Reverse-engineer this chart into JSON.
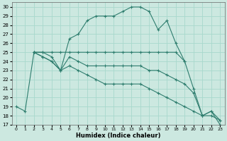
{
  "title": "",
  "xlabel": "Humidex (Indice chaleur)",
  "bg_color": "#cce8e0",
  "line_color": "#2e7d6e",
  "grid_color": "#a8d8cc",
  "xlim": [
    -0.5,
    23.5
  ],
  "ylim": [
    17,
    30.5
  ],
  "xticks": [
    0,
    1,
    2,
    3,
    4,
    5,
    6,
    7,
    8,
    9,
    10,
    11,
    12,
    13,
    14,
    15,
    16,
    17,
    18,
    19,
    20,
    21,
    22,
    23
  ],
  "yticks": [
    17,
    18,
    19,
    20,
    21,
    22,
    23,
    24,
    25,
    26,
    27,
    28,
    29,
    30
  ],
  "lines": [
    {
      "x": [
        0,
        1,
        2,
        3,
        4,
        5,
        6,
        7,
        8,
        9,
        10,
        11,
        12,
        13,
        14,
        15,
        16,
        17,
        18,
        19,
        20,
        21,
        22,
        23
      ],
      "y": [
        19,
        18.5,
        25,
        25,
        24.5,
        23.0,
        26.5,
        27.0,
        28.5,
        29.0,
        29.0,
        29.0,
        29.5,
        30.0,
        30.0,
        29.5,
        27.5,
        28.5,
        26.0,
        24.0,
        21.0,
        18.0,
        18.5,
        17.0
      ]
    },
    {
      "x": [
        2,
        3,
        4,
        5,
        6,
        7,
        8,
        9,
        10,
        11,
        12,
        13,
        14,
        15,
        16,
        17,
        18,
        19
      ],
      "y": [
        25,
        25,
        25,
        25,
        25,
        25,
        25,
        25,
        25,
        25,
        25,
        25,
        25,
        25,
        25,
        25,
        25,
        24.0
      ]
    },
    {
      "x": [
        2,
        3,
        4,
        5,
        6,
        7,
        8,
        9,
        10,
        11,
        12,
        13,
        14,
        15,
        16,
        17,
        18,
        19,
        20,
        21,
        22,
        23
      ],
      "y": [
        25,
        24.5,
        24.0,
        23.0,
        24.5,
        24.0,
        23.5,
        23.5,
        23.5,
        23.5,
        23.5,
        23.5,
        23.5,
        23.0,
        23.0,
        22.5,
        22.0,
        21.5,
        20.5,
        18.0,
        18.5,
        17.5
      ]
    },
    {
      "x": [
        2,
        3,
        4,
        5,
        6,
        7,
        8,
        9,
        10,
        11,
        12,
        13,
        14,
        15,
        16,
        17,
        18,
        19,
        20,
        21,
        22,
        23
      ],
      "y": [
        25,
        24.5,
        24.0,
        23.0,
        23.5,
        23.0,
        22.5,
        22.0,
        21.5,
        21.5,
        21.5,
        21.5,
        21.5,
        21.0,
        20.5,
        20.0,
        19.5,
        19.0,
        18.5,
        18.0,
        18.0,
        17.5
      ]
    }
  ]
}
